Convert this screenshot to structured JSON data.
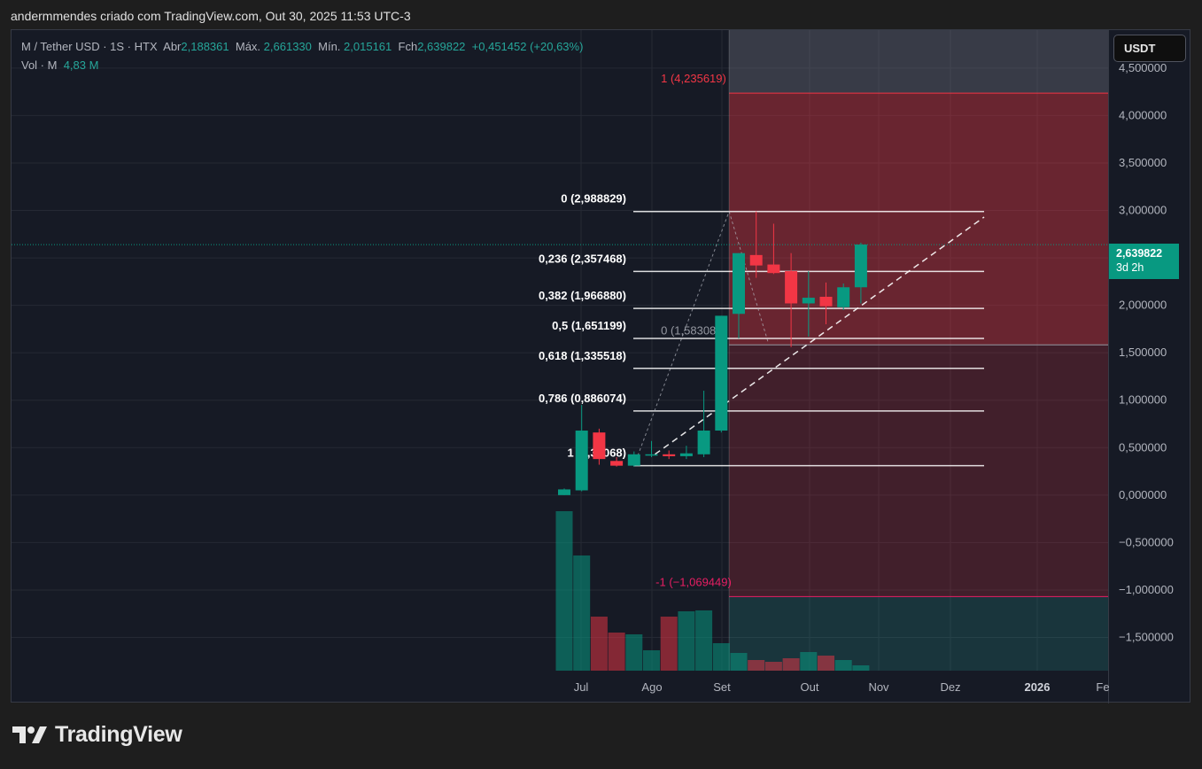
{
  "header": {
    "title": "andermmendes criado com TradingView.com, Out 30, 2025 11:53 UTC-3"
  },
  "legend": {
    "symbol": "M / Tether USD · 1S · HTX",
    "open_label": "Abr",
    "open": "2,188361",
    "high_label": "Máx.",
    "high": "2,661330",
    "low_label": "Mín.",
    "low": "2,015161",
    "close_label": "Fch",
    "close": "2,639822",
    "change": "+0,451452 (+20,63%)",
    "vol_label": "Vol · M",
    "vol": "4,83 M"
  },
  "currency_button": "USDT",
  "last_price": {
    "price": "2,639822",
    "countdown": "3d 2h"
  },
  "logo_text": "TradingView",
  "colors": {
    "up": "#089981",
    "down": "#f23645",
    "background": "#161a25"
  },
  "chart_data": {
    "type": "candlestick",
    "x_tick_labels": [
      "Jul",
      "Ago",
      "Set",
      "Out",
      "Nov",
      "Dez",
      "2026",
      "Fe"
    ],
    "y_tick_labels": [
      "4,500000",
      "4,000000",
      "3,500000",
      "3,000000",
      "2,500000",
      "2,000000",
      "1,500000",
      "1,000000",
      "0,500000",
      "0,000000",
      "−0,500000",
      "−1,000000",
      "−1,500000"
    ],
    "y_ticks": [
      4.5,
      4.0,
      3.5,
      3.0,
      2.5,
      2.0,
      1.5,
      1.0,
      0.5,
      0.0,
      -0.5,
      -1.0,
      -1.5
    ],
    "ylim": [
      -1.85,
      4.9
    ],
    "candles": [
      {
        "o": 0.0,
        "h": 0.07,
        "l": 0.0,
        "c": 0.06
      },
      {
        "o": 0.05,
        "h": 0.95,
        "l": 0.04,
        "c": 0.68
      },
      {
        "o": 0.66,
        "h": 0.7,
        "l": 0.32,
        "c": 0.38
      },
      {
        "o": 0.36,
        "h": 0.4,
        "l": 0.3,
        "c": 0.31
      },
      {
        "o": 0.31,
        "h": 0.46,
        "l": 0.3,
        "c": 0.43
      },
      {
        "o": 0.42,
        "h": 0.57,
        "l": 0.4,
        "c": 0.43
      },
      {
        "o": 0.43,
        "h": 0.47,
        "l": 0.38,
        "c": 0.41
      },
      {
        "o": 0.41,
        "h": 0.52,
        "l": 0.38,
        "c": 0.44
      },
      {
        "o": 0.43,
        "h": 1.1,
        "l": 0.4,
        "c": 0.68
      },
      {
        "o": 0.68,
        "h": 1.85,
        "l": 0.66,
        "c": 1.89
      },
      {
        "o": 1.91,
        "h": 2.55,
        "l": 1.65,
        "c": 2.55
      },
      {
        "o": 2.53,
        "h": 2.99,
        "l": 2.29,
        "c": 2.42
      },
      {
        "o": 2.43,
        "h": 2.86,
        "l": 2.33,
        "c": 2.34
      },
      {
        "o": 2.36,
        "h": 2.55,
        "l": 1.56,
        "c": 2.02
      },
      {
        "o": 2.02,
        "h": 2.36,
        "l": 1.67,
        "c": 2.08
      },
      {
        "o": 2.09,
        "h": 2.24,
        "l": 1.8,
        "c": 1.99
      },
      {
        "o": 1.98,
        "h": 2.23,
        "l": 1.95,
        "c": 2.19
      },
      {
        "o": 2.19,
        "h": 2.66,
        "l": 2.02,
        "c": 2.64
      }
    ],
    "volume_direction": [
      "up",
      "up",
      "down",
      "down",
      "up",
      "up",
      "down",
      "up",
      "up",
      "up",
      "up",
      "down",
      "down",
      "down",
      "up",
      "down",
      "up",
      "up"
    ],
    "fib_levels": [
      {
        "label": "0 (2,988829)",
        "value": 2.988829
      },
      {
        "label": "0,236 (2,357468)",
        "value": 2.357468
      },
      {
        "label": "0,382 (1,966880)",
        "value": 1.96688
      },
      {
        "label": "0,5 (1,651199)",
        "value": 1.651199
      },
      {
        "label": "0,618 (1,335518)",
        "value": 1.335518
      },
      {
        "label": "0,786 (0,886074)",
        "value": 0.886074
      },
      {
        "label": "1 (0,31068)",
        "value": 0.31068
      }
    ],
    "zone_labels": [
      {
        "label": "1 (4,235619)",
        "value": 4.235619,
        "color": "#f23645"
      },
      {
        "label": "0 (1,583085)",
        "value": 1.583085,
        "color": "#9598a1"
      },
      {
        "label": "-1 (−1,069449)",
        "value": -1.069449,
        "color": "#e91e63"
      }
    ]
  }
}
